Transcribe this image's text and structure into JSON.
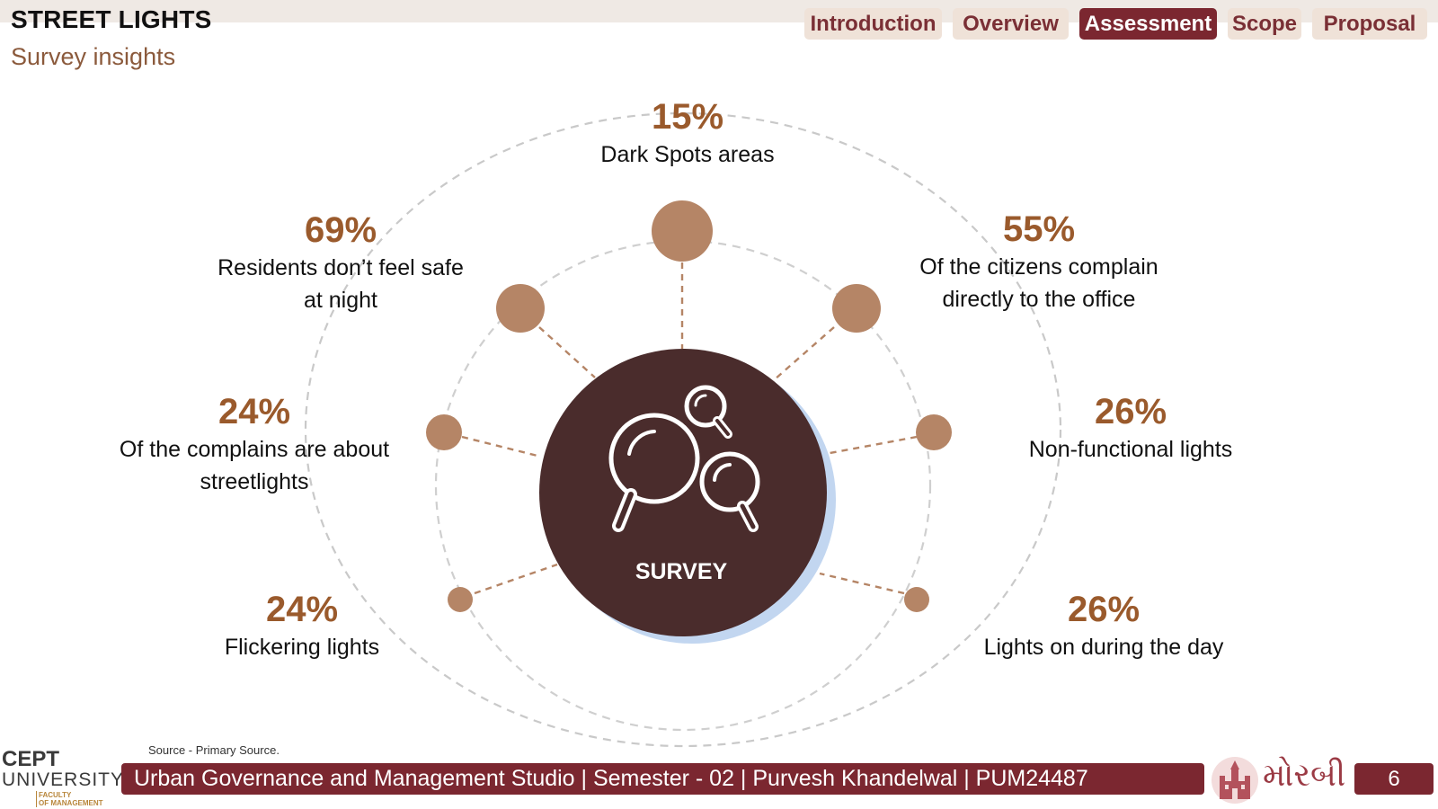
{
  "header": {
    "title": "STREET LIGHTS",
    "subtitle": "Survey insights"
  },
  "nav": {
    "tabs": [
      "Introduction",
      "Overview",
      "Assessment",
      "Scope",
      "Proposal"
    ],
    "active": "Assessment"
  },
  "survey": {
    "center_label": "SURVEY",
    "stats": [
      {
        "value": "15%",
        "label": "Dark Spots areas"
      },
      {
        "value": "69%",
        "label": "Residents don’t feel safe\nat night"
      },
      {
        "value": "55%",
        "label": "Of the citizens complain\ndirectly to the office"
      },
      {
        "value": "24%",
        "label": "Of the complains are about\nstreetlights"
      },
      {
        "value": "26%",
        "label": "Non-functional lights"
      },
      {
        "value": "24%",
        "label": "Flickering lights"
      },
      {
        "value": "26%",
        "label": "Lights on during the day"
      }
    ]
  },
  "footer": {
    "source": "Source -  Primary Source.",
    "bar_text": "Urban Governance and Management Studio | Semester - 02 | Purvesh Khandelwal | PUM24487",
    "page_number": "6",
    "logo_line1": "CEPT",
    "logo_line2": "UNIVERSITY",
    "logo_line3": "FACULTY\nOF MANAGEMENT",
    "morbi_text": "મોરબી"
  },
  "colors": {
    "accent": "#7b2730",
    "tab_bg": "#efe2d8",
    "node": "#b58566",
    "center": "#4a2c2c",
    "shadow": "#c2d6f0",
    "percent": "#9a5a2c"
  },
  "icons": [
    "magnifier-icon",
    "morbi-emblem-icon"
  ]
}
